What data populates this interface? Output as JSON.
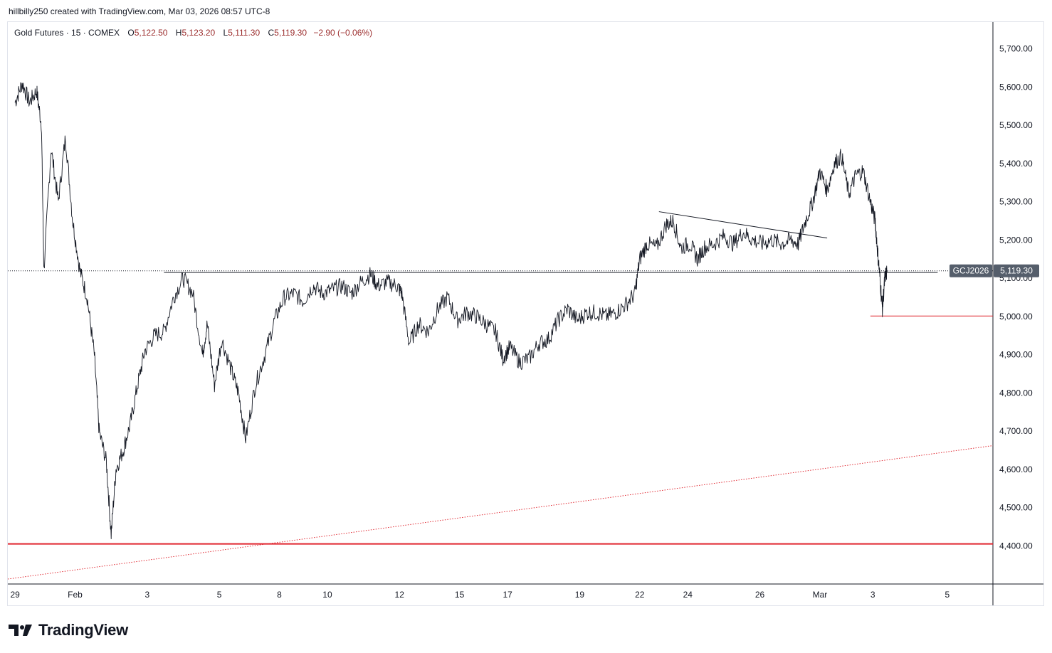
{
  "header": {
    "credit": "hillbilly250 created with TradingView.com, Mar 03, 2026 08:57 UTC-8"
  },
  "legend": {
    "symbol": "Gold Futures · 15 · COMEX",
    "open_label": "O",
    "open": "5,122.50",
    "high_label": "H",
    "high": "5,123.20",
    "low_label": "L",
    "low": "5,111.30",
    "close_label": "C",
    "close": "5,119.30",
    "change": "−2.90 (−0.06%)"
  },
  "brand": {
    "name": "TradingView",
    "logo": "tradingview-logo-icon"
  },
  "colors": {
    "price_line": "#131722",
    "support_red": "#e0262f",
    "trend_red": "#e0262f",
    "badge_bg": "#555e6b",
    "legend_value": "#9b2c2c"
  },
  "chart_data": {
    "type": "line",
    "instrument": "Gold Futures",
    "timeframe": "15",
    "exchange": "COMEX",
    "ylim": [
      4300,
      5770
    ],
    "y_ticks": [
      4400,
      4500,
      4600,
      4700,
      4800,
      4900,
      5000,
      5100,
      5200,
      5300,
      5400,
      5500,
      5600,
      5700
    ],
    "y_tick_labels": [
      "4,400.00",
      "4,500.00",
      "4,600.00",
      "4,700.00",
      "4,800.00",
      "4,900.00",
      "5,000.00",
      "5,100.00",
      "5,200.00",
      "5,300.00",
      "5,400.00",
      "5,500.00",
      "5,600.00",
      "5,700.00"
    ],
    "x_ticks": [
      {
        "label": "29",
        "t": 0
      },
      {
        "label": "Feb",
        "t": 2.5
      },
      {
        "label": "3",
        "t": 5.5
      },
      {
        "label": "5",
        "t": 8.5
      },
      {
        "label": "8",
        "t": 11
      },
      {
        "label": "10",
        "t": 13
      },
      {
        "label": "12",
        "t": 16
      },
      {
        "label": "15",
        "t": 18.5
      },
      {
        "label": "17",
        "t": 20.5
      },
      {
        "label": "19",
        "t": 23.5
      },
      {
        "label": "22",
        "t": 26
      },
      {
        "label": "24",
        "t": 28
      },
      {
        "label": "26",
        "t": 31
      },
      {
        "label": "Mar",
        "t": 33.5
      },
      {
        "label": "3",
        "t": 35.7
      },
      {
        "label": "5",
        "t": 38.8
      }
    ],
    "x_range": [
      -0.3,
      40.7
    ],
    "series": [
      {
        "points": [
          [
            0,
            5560
          ],
          [
            0.3,
            5610
          ],
          [
            0.6,
            5560
          ],
          [
            0.9,
            5590
          ],
          [
            1.1,
            5500
          ],
          [
            1.2,
            5120
          ],
          [
            1.5,
            5440
          ],
          [
            1.8,
            5300
          ],
          [
            2.1,
            5470
          ],
          [
            2.4,
            5250
          ],
          [
            2.7,
            5120
          ],
          [
            3.0,
            5050
          ],
          [
            3.3,
            4900
          ],
          [
            3.5,
            4700
          ],
          [
            3.8,
            4620
          ],
          [
            4.0,
            4430
          ],
          [
            4.2,
            4600
          ],
          [
            4.5,
            4650
          ],
          [
            4.8,
            4720
          ],
          [
            5.1,
            4820
          ],
          [
            5.4,
            4910
          ],
          [
            5.8,
            4950
          ],
          [
            6.2,
            4960
          ],
          [
            6.6,
            5050
          ],
          [
            7.0,
            5100
          ],
          [
            7.4,
            5060
          ],
          [
            7.8,
            4900
          ],
          [
            8.0,
            4980
          ],
          [
            8.3,
            4820
          ],
          [
            8.6,
            4940
          ],
          [
            9.0,
            4860
          ],
          [
            9.3,
            4800
          ],
          [
            9.6,
            4680
          ],
          [
            10.0,
            4820
          ],
          [
            10.4,
            4900
          ],
          [
            10.8,
            4990
          ],
          [
            11.2,
            5050
          ],
          [
            11.6,
            5060
          ],
          [
            12.0,
            5040
          ],
          [
            12.4,
            5080
          ],
          [
            12.8,
            5060
          ],
          [
            13.2,
            5070
          ],
          [
            13.6,
            5080
          ],
          [
            14.0,
            5060
          ],
          [
            14.4,
            5090
          ],
          [
            14.8,
            5110
          ],
          [
            15.1,
            5080
          ],
          [
            15.5,
            5090
          ],
          [
            15.9,
            5080
          ],
          [
            16.1,
            5060
          ],
          [
            16.4,
            4930
          ],
          [
            16.8,
            4980
          ],
          [
            17.2,
            4960
          ],
          [
            17.6,
            5020
          ],
          [
            18.0,
            5050
          ],
          [
            18.4,
            4990
          ],
          [
            18.8,
            5010
          ],
          [
            19.2,
            5000
          ],
          [
            19.6,
            4980
          ],
          [
            20.0,
            4960
          ],
          [
            20.3,
            4890
          ],
          [
            20.6,
            4920
          ],
          [
            21.0,
            4880
          ],
          [
            21.4,
            4890
          ],
          [
            21.8,
            4930
          ],
          [
            22.2,
            4940
          ],
          [
            22.6,
            4990
          ],
          [
            23.0,
            5020
          ],
          [
            23.4,
            4990
          ],
          [
            23.8,
            5010
          ],
          [
            24.2,
            5010
          ],
          [
            24.6,
            5000
          ],
          [
            25.0,
            5010
          ],
          [
            25.4,
            5030
          ],
          [
            25.8,
            5060
          ],
          [
            26.0,
            5150
          ],
          [
            26.3,
            5190
          ],
          [
            26.7,
            5180
          ],
          [
            27.1,
            5240
          ],
          [
            27.4,
            5250
          ],
          [
            27.7,
            5180
          ],
          [
            28.1,
            5190
          ],
          [
            28.4,
            5150
          ],
          [
            28.7,
            5180
          ],
          [
            29.1,
            5190
          ],
          [
            29.5,
            5210
          ],
          [
            29.9,
            5190
          ],
          [
            30.3,
            5220
          ],
          [
            30.7,
            5200
          ],
          [
            31.1,
            5190
          ],
          [
            31.5,
            5200
          ],
          [
            31.9,
            5190
          ],
          [
            32.3,
            5200
          ],
          [
            32.6,
            5190
          ],
          [
            32.9,
            5250
          ],
          [
            33.2,
            5300
          ],
          [
            33.5,
            5380
          ],
          [
            33.8,
            5330
          ],
          [
            34.1,
            5400
          ],
          [
            34.4,
            5420
          ],
          [
            34.7,
            5320
          ],
          [
            35.0,
            5370
          ],
          [
            35.3,
            5380
          ],
          [
            35.6,
            5300
          ],
          [
            35.8,
            5250
          ],
          [
            35.9,
            5170
          ],
          [
            36.0,
            5100
          ],
          [
            36.1,
            5020
          ],
          [
            36.2,
            5100
          ],
          [
            36.3,
            5119.3
          ]
        ]
      }
    ],
    "annotations": [
      {
        "type": "horizontal_line",
        "y": 5119.3,
        "style": "dotted",
        "t_from": -0.3,
        "t_to": 40.7
      },
      {
        "type": "segment",
        "y": 5115,
        "t_from": 6.2,
        "t_to": 38.4
      },
      {
        "type": "segment",
        "y": 5001,
        "t_from": 35.6,
        "t_to": 40.7,
        "color": "red"
      },
      {
        "type": "segment",
        "points": [
          [
            26.8,
            5274
          ],
          [
            33.8,
            5205
          ]
        ]
      },
      {
        "type": "horizontal_line",
        "y": 4405,
        "color": "red",
        "width": 2
      },
      {
        "type": "trendline",
        "points": [
          [
            -0.3,
            4313
          ],
          [
            40.7,
            4662
          ]
        ],
        "color": "red",
        "style": "dotted"
      }
    ],
    "last_price": {
      "label": "GCJ2026",
      "value": "5,119.30",
      "y": 5119.3
    },
    "grid": false,
    "legend": "top-left"
  }
}
